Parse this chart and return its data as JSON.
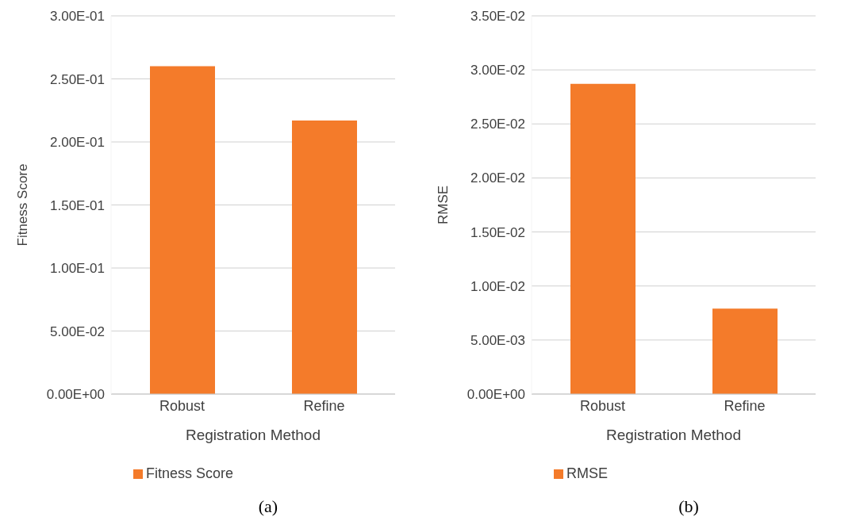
{
  "chart_data": [
    {
      "type": "bar",
      "categories": [
        "Robust",
        "Refine"
      ],
      "xlabel": "Registration Method",
      "ylabel": "Fitness Score",
      "series": [
        {
          "name": "Fitness Score",
          "color": "#f47b2a",
          "values": [
            0.26,
            0.217
          ]
        }
      ],
      "ylim": [
        0,
        0.3
      ],
      "yticks": [
        {
          "value": 0,
          "label": "0.00E+00"
        },
        {
          "value": 0.05,
          "label": "5.00E-02"
        },
        {
          "value": 0.1,
          "label": "1.00E-01"
        },
        {
          "value": 0.15,
          "label": "1.50E-01"
        },
        {
          "value": 0.2,
          "label": "2.00E-01"
        },
        {
          "value": 0.25,
          "label": "2.50E-01"
        },
        {
          "value": 0.3,
          "label": "3.00E-01"
        }
      ],
      "grid": "y",
      "legend": "bottom",
      "annotations": [
        "(a)"
      ]
    },
    {
      "type": "bar",
      "categories": [
        "Robust",
        "Refine"
      ],
      "xlabel": "Registration Method",
      "ylabel": "RMSE",
      "series": [
        {
          "name": "RMSE",
          "color": "#f47b2a",
          "values": [
            0.0287,
            0.0079
          ]
        }
      ],
      "ylim": [
        0,
        0.035
      ],
      "yticks": [
        {
          "value": 0,
          "label": "0.00E+00"
        },
        {
          "value": 0.005,
          "label": "5.00E-03"
        },
        {
          "value": 0.01,
          "label": "1.00E-02"
        },
        {
          "value": 0.015,
          "label": "1.50E-02"
        },
        {
          "value": 0.02,
          "label": "2.00E-02"
        },
        {
          "value": 0.025,
          "label": "2.50E-02"
        },
        {
          "value": 0.03,
          "label": "3.00E-02"
        },
        {
          "value": 0.035,
          "label": "3.50E-02"
        }
      ],
      "grid": "y",
      "legend": "bottom",
      "annotations": [
        "(b)"
      ]
    }
  ]
}
